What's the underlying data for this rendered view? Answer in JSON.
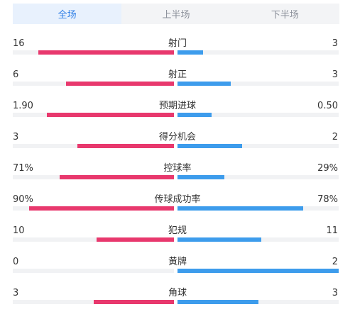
{
  "tabs": [
    {
      "label": "全场",
      "active": true
    },
    {
      "label": "上半场",
      "active": false
    },
    {
      "label": "下半场",
      "active": false
    }
  ],
  "colors": {
    "home": "#e8386d",
    "away": "#3d9cec",
    "track": "#f1f2f4",
    "tab_active_text": "#2f7fe6",
    "tab_active_bg": "#e8f1fd"
  },
  "stats": [
    {
      "label": "射门",
      "home": "16",
      "away": "3",
      "home_fill": 0.84,
      "away_fill": 0.16
    },
    {
      "label": "射正",
      "home": "6",
      "away": "3",
      "home_fill": 0.67,
      "away_fill": 0.33
    },
    {
      "label": "预期进球",
      "home": "1.90",
      "away": "0.50",
      "home_fill": 0.79,
      "away_fill": 0.21
    },
    {
      "label": "得分机会",
      "home": "3",
      "away": "2",
      "home_fill": 0.6,
      "away_fill": 0.4
    },
    {
      "label": "控球率",
      "home": "71%",
      "away": "29%",
      "home_fill": 0.71,
      "away_fill": 0.29
    },
    {
      "label": "传球成功率",
      "home": "90%",
      "away": "78%",
      "home_fill": 0.9,
      "away_fill": 0.78
    },
    {
      "label": "犯规",
      "home": "10",
      "away": "11",
      "home_fill": 0.48,
      "away_fill": 0.52
    },
    {
      "label": "黄牌",
      "home": "0",
      "away": "2",
      "home_fill": 0.0,
      "away_fill": 1.0
    },
    {
      "label": "角球",
      "home": "3",
      "away": "3",
      "home_fill": 0.5,
      "away_fill": 0.5
    }
  ]
}
